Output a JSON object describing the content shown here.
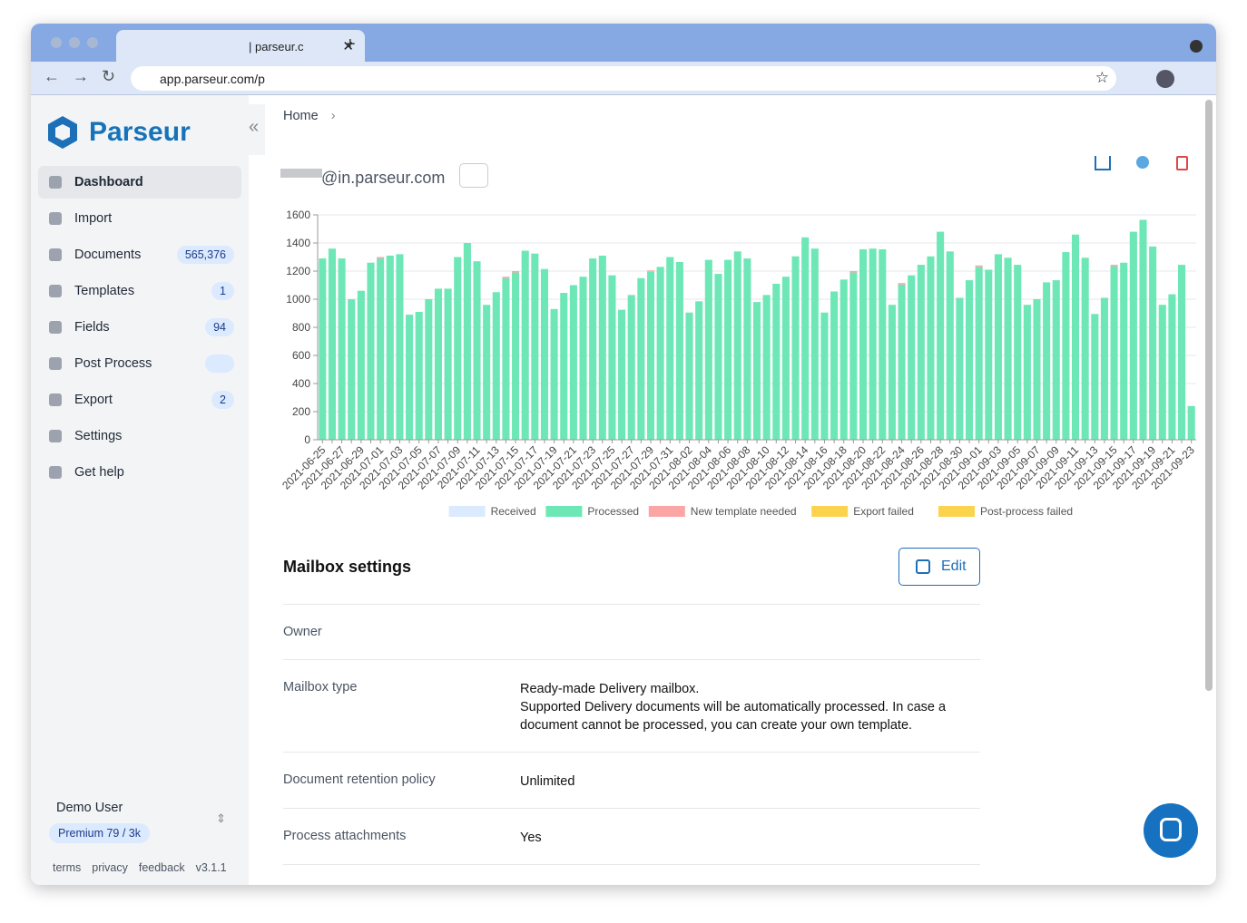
{
  "browser": {
    "tab_title": "| parseur.c",
    "url": "app.parseur.com/p"
  },
  "sidebar": {
    "brand": "Parseur",
    "nav": [
      {
        "label": "Dashboard"
      },
      {
        "label": "Import"
      },
      {
        "label": "Documents",
        "badge": "565,376"
      },
      {
        "label": "Templates",
        "badge": "1"
      },
      {
        "label": "Fields",
        "badge": "94"
      },
      {
        "label": "Post Process"
      },
      {
        "label": "Export",
        "badge": "2"
      },
      {
        "label": "Settings"
      },
      {
        "label": "Get help"
      }
    ],
    "user": "Demo User",
    "plan": "Premium 79 / 3k",
    "footer": [
      "terms",
      "privacy",
      "feedback",
      "v3.1.1"
    ]
  },
  "breadcrumb": "Home",
  "mailbox": "@in.parseur.com",
  "chart_data": {
    "type": "bar",
    "stacked": true,
    "categories": [
      "2021-06-25",
      null,
      "2021-06-27",
      null,
      "2021-06-29",
      null,
      "2021-07-01",
      null,
      "2021-07-03",
      null,
      "2021-07-05",
      null,
      "2021-07-07",
      null,
      "2021-07-09",
      null,
      "2021-07-11",
      null,
      "2021-07-13",
      null,
      "2021-07-15",
      null,
      "2021-07-17",
      null,
      "2021-07-19",
      null,
      "2021-07-21",
      null,
      "2021-07-23",
      null,
      "2021-07-25",
      null,
      "2021-07-27",
      null,
      "2021-07-29",
      null,
      "2021-07-31",
      null,
      "2021-08-02",
      null,
      "2021-08-04",
      null,
      "2021-08-06",
      null,
      "2021-08-08",
      null,
      "2021-08-10",
      null,
      "2021-08-12",
      null,
      "2021-08-14",
      null,
      "2021-08-16",
      null,
      "2021-08-18",
      null,
      "2021-08-20",
      null,
      "2021-08-22",
      null,
      "2021-08-24",
      null,
      "2021-08-26",
      null,
      "2021-08-28",
      null,
      "2021-08-30",
      null,
      "2021-09-01",
      null,
      "2021-09-03",
      null,
      "2021-09-05",
      null,
      "2021-09-07",
      null,
      "2021-09-09",
      null,
      "2021-09-11",
      null,
      "2021-09-13",
      null,
      "2021-09-15",
      null,
      "2021-09-17",
      null,
      "2021-09-19",
      null,
      "2021-09-21",
      null,
      "2021-09-23"
    ],
    "series": [
      {
        "name": "Received",
        "color": "#dbeafe",
        "values": [
          0,
          0,
          0,
          0,
          0,
          0,
          0,
          0,
          0,
          0,
          0,
          0,
          0,
          0,
          0,
          0,
          0,
          0,
          0,
          0,
          0,
          0,
          0,
          0,
          0,
          0,
          0,
          0,
          0,
          0,
          0,
          0,
          0,
          0,
          0,
          0,
          0,
          0,
          0,
          0,
          0,
          0,
          0,
          0,
          0,
          0,
          0,
          0,
          0,
          0,
          0,
          0,
          0,
          0,
          0,
          0,
          0,
          0,
          0,
          0,
          0,
          0,
          0,
          0,
          0,
          0,
          0,
          0,
          0,
          0,
          0,
          0,
          0,
          0,
          0,
          0,
          0,
          0,
          0,
          0,
          0,
          0,
          0,
          0,
          0,
          0,
          0,
          0,
          0,
          0,
          0
        ]
      },
      {
        "name": "Processed",
        "color": "#6ee7b7",
        "values": [
          1290,
          1360,
          1290,
          1000,
          1060,
          1260,
          1290,
          1310,
          1320,
          890,
          910,
          1000,
          1075,
          1075,
          1300,
          1400,
          1270,
          960,
          1050,
          1150,
          1190,
          1345,
          1325,
          1215,
          930,
          1045,
          1100,
          1160,
          1290,
          1310,
          1170,
          925,
          1030,
          1150,
          1195,
          1230,
          1300,
          1265,
          905,
          985,
          1280,
          1180,
          1280,
          1340,
          1290,
          980,
          1030,
          1110,
          1160,
          1305,
          1440,
          1360,
          905,
          1055,
          1140,
          1190,
          1355,
          1360,
          1355,
          960,
          1105,
          1170,
          1245,
          1305,
          1480,
          1340,
          1010,
          1135,
          1230,
          1210,
          1320,
          1295,
          1245,
          960,
          1000,
          1120,
          1135,
          1335,
          1460,
          1295,
          895,
          1010,
          1235,
          1260,
          1480,
          1565,
          1375,
          960,
          1035,
          1245,
          240
        ]
      },
      {
        "name": "New template needed",
        "color": "#fca5a5",
        "values": [
          0,
          0,
          0,
          0,
          0,
          0,
          10,
          0,
          0,
          0,
          0,
          0,
          0,
          0,
          0,
          0,
          0,
          0,
          0,
          10,
          10,
          0,
          0,
          0,
          0,
          0,
          0,
          0,
          0,
          0,
          0,
          0,
          0,
          0,
          10,
          0,
          0,
          0,
          0,
          0,
          0,
          0,
          0,
          0,
          0,
          0,
          0,
          0,
          0,
          0,
          0,
          0,
          0,
          0,
          0,
          10,
          0,
          0,
          0,
          0,
          10,
          0,
          0,
          0,
          0,
          0,
          0,
          0,
          10,
          0,
          0,
          0,
          0,
          0,
          0,
          0,
          0,
          0,
          0,
          0,
          0,
          0,
          10,
          0,
          0,
          0,
          0,
          0,
          0,
          0,
          0
        ]
      },
      {
        "name": "Export failed",
        "color": "#fcd34d",
        "values": [
          0,
          0,
          0,
          0,
          0,
          0,
          0,
          0,
          0,
          0,
          0,
          0,
          0,
          0,
          0,
          0,
          0,
          0,
          0,
          0,
          0,
          0,
          0,
          0,
          0,
          0,
          0,
          0,
          0,
          0,
          0,
          0,
          0,
          0,
          0,
          0,
          0,
          0,
          0,
          0,
          0,
          0,
          0,
          0,
          0,
          0,
          0,
          0,
          0,
          0,
          0,
          0,
          0,
          0,
          0,
          0,
          0,
          0,
          0,
          0,
          0,
          0,
          0,
          0,
          0,
          0,
          0,
          0,
          0,
          0,
          0,
          0,
          0,
          0,
          0,
          0,
          0,
          0,
          0,
          0,
          0,
          0,
          0,
          0,
          0,
          0,
          0,
          0,
          0,
          0,
          0
        ]
      },
      {
        "name": "Post-process failed",
        "color": "#fcd34d",
        "values": [
          0,
          0,
          0,
          0,
          0,
          0,
          0,
          0,
          0,
          0,
          0,
          0,
          0,
          0,
          0,
          0,
          0,
          0,
          0,
          0,
          0,
          0,
          0,
          0,
          0,
          0,
          0,
          0,
          0,
          0,
          0,
          0,
          0,
          0,
          0,
          0,
          0,
          0,
          0,
          0,
          0,
          0,
          0,
          0,
          0,
          0,
          0,
          0,
          0,
          0,
          0,
          0,
          0,
          0,
          0,
          0,
          0,
          0,
          0,
          0,
          0,
          0,
          0,
          0,
          0,
          0,
          0,
          0,
          0,
          0,
          0,
          0,
          0,
          0,
          0,
          0,
          0,
          0,
          0,
          0,
          0,
          0,
          0,
          0,
          0,
          0,
          0,
          0,
          0,
          0,
          0
        ]
      }
    ],
    "ylim": [
      0,
      1600
    ],
    "yticks": [
      0,
      200,
      400,
      600,
      800,
      1000,
      1200,
      1400,
      1600
    ],
    "grid": true,
    "legend": "bottom"
  },
  "settings": {
    "title": "Mailbox settings",
    "edit": "Edit",
    "rows": [
      {
        "label": "Owner",
        "lines": []
      },
      {
        "label": "Mailbox type",
        "lines": [
          "Ready-made Delivery mailbox.",
          "Supported Delivery documents will be automatically processed. In case a",
          "document cannot be processed, you can create your own template."
        ]
      },
      {
        "label": "Document retention policy",
        "lines": [
          "Unlimited"
        ]
      },
      {
        "label": "Process attachments",
        "lines": [
          "Yes"
        ]
      }
    ]
  }
}
